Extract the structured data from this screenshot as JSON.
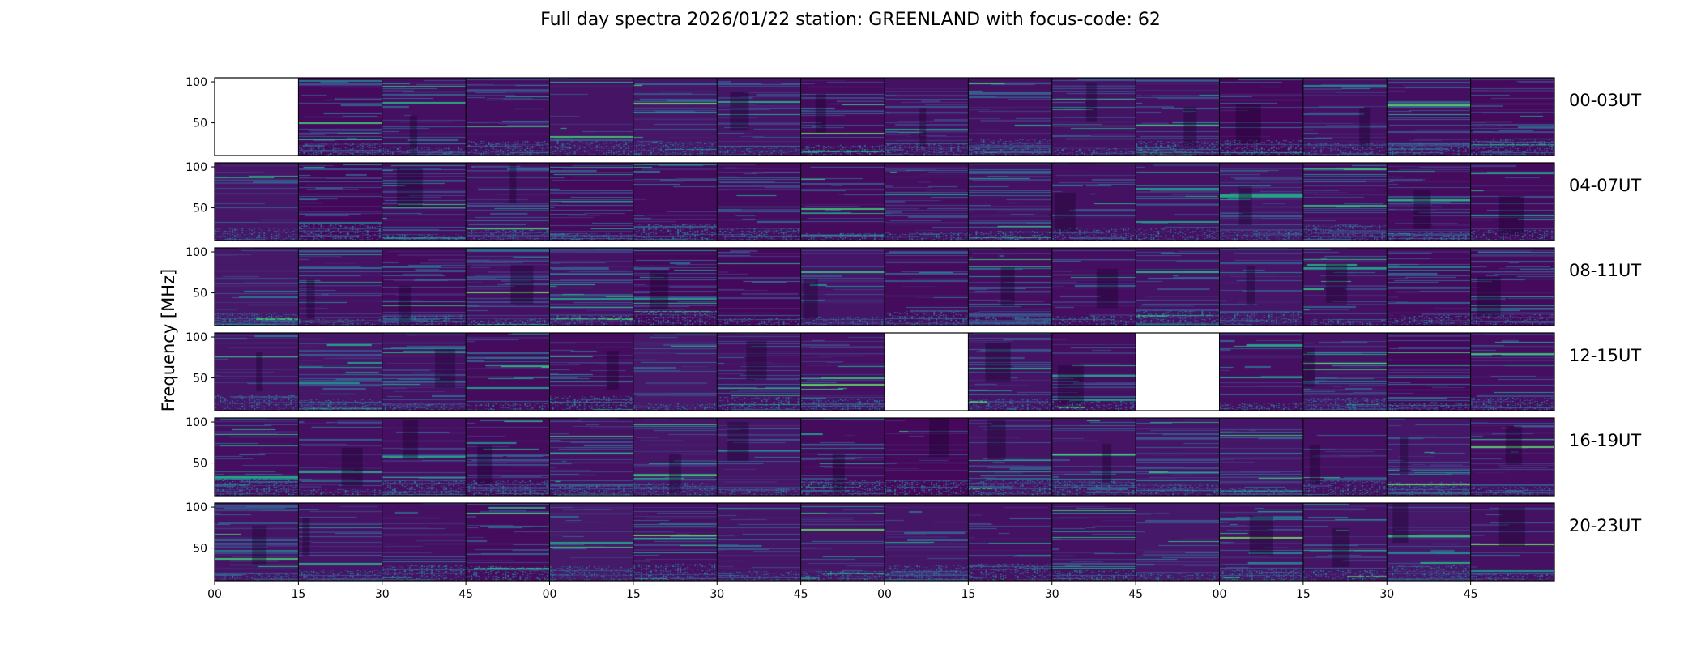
{
  "chart_data": {
    "type": "heatmap",
    "title": "Full day spectra 2026/01/22 station: GREENLAND with focus-code: 62",
    "ylabel": "Frequency [MHz]",
    "xlabel": "",
    "colormap": "viridis",
    "ylim": [
      10,
      105
    ],
    "yticks": [
      100,
      50
    ],
    "xticks": [
      "00",
      "15",
      "30",
      "45",
      "00",
      "15",
      "30",
      "45",
      "00",
      "15",
      "30",
      "45",
      "00",
      "15",
      "30",
      "45"
    ],
    "rows": [
      {
        "label": "00-03UT",
        "missing_panels": [
          0
        ]
      },
      {
        "label": "04-07UT",
        "missing_panels": []
      },
      {
        "label": "08-11UT",
        "missing_panels": []
      },
      {
        "label": "12-15UT",
        "missing_panels": [
          8,
          11
        ]
      },
      {
        "label": "16-19UT",
        "missing_panels": []
      },
      {
        "label": "20-23UT",
        "missing_panels": []
      }
    ],
    "panels_per_row": 16,
    "panel_minutes": 15
  }
}
